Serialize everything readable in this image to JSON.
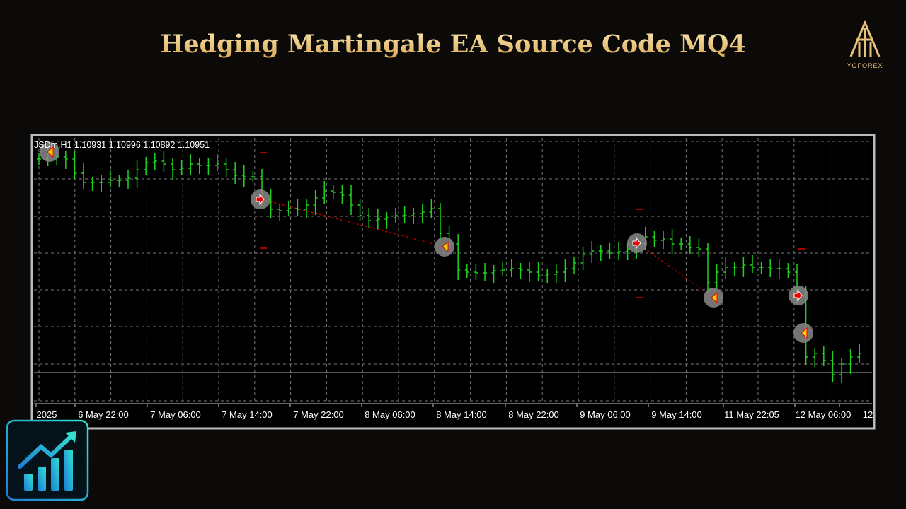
{
  "header": {
    "title": "Hedging Martingale EA Source Code MQ4",
    "brand": "YOFOREX"
  },
  "chart": {
    "info": "JSDm,H1  1.10931 1.10996 1.10892 1.10951",
    "time_labels": [
      "2025",
      "6 May 22:00",
      "7 May 06:00",
      "7 May 14:00",
      "7 May 22:00",
      "8 May 06:00",
      "8 May 14:00",
      "8 May 22:00",
      "9 May 06:00",
      "9 May 14:00",
      "11 May 22:05",
      "12 May 06:00",
      "12"
    ]
  }
}
